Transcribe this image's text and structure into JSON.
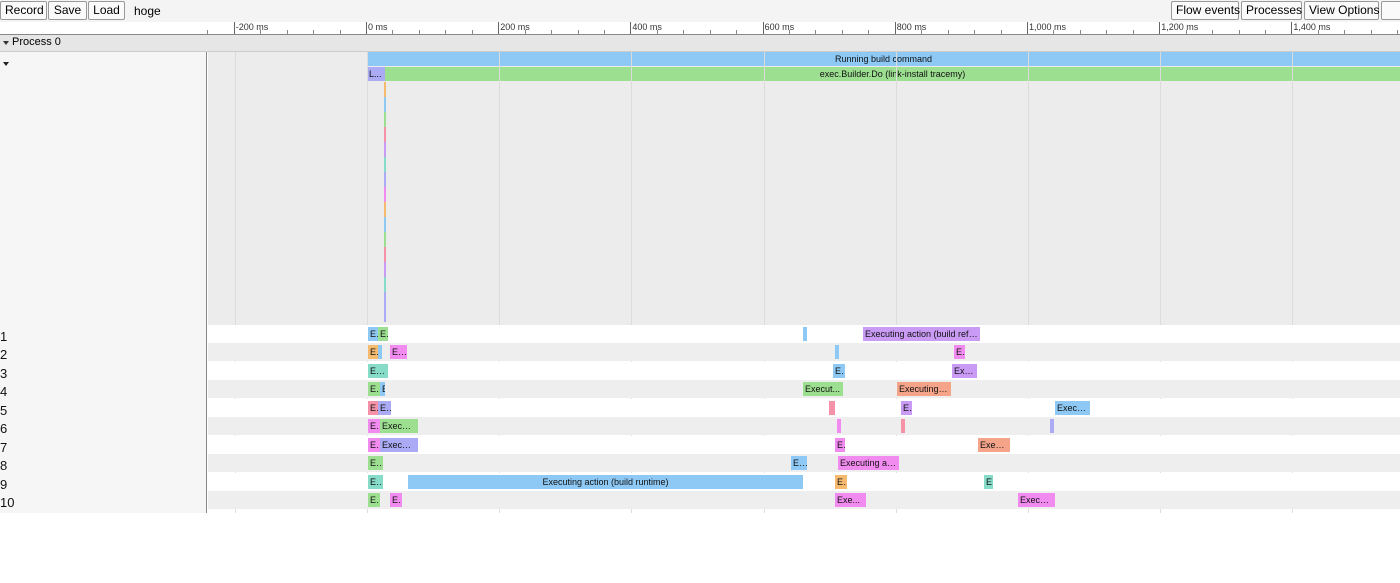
{
  "toolbar": {
    "record_label": "Record",
    "save_label": "Save",
    "load_label": "Load",
    "trace_name": "hoge",
    "flow_events_label": "Flow events",
    "processes_label": "Processes",
    "view_options_label": "View Options"
  },
  "ruler": {
    "labels": [
      "-200 ms",
      "0 ms",
      "200 ms",
      "400 ms",
      "600 ms",
      "800 ms",
      "1,000 ms",
      "1,200 ms",
      "1,400 ms"
    ]
  },
  "process": {
    "name": "Process 0"
  },
  "main_slices": {
    "top": "Running build command",
    "second_prefix": "L...",
    "second": "exec.Builder.Do (link-install tracemy)"
  },
  "threads": [
    {
      "label": "1",
      "slices": [
        {
          "start": 30,
          "dur": 10,
          "color": "#8ec9f5",
          "text": "Ex"
        },
        {
          "start": 40,
          "dur": 10,
          "color": "#9ddf90",
          "text": "Ex"
        },
        {
          "start": 465,
          "dur": 4,
          "color": "#8ec9f5",
          "text": ""
        },
        {
          "start": 525,
          "dur": 117,
          "color": "#c99bf5",
          "text": "Executing action (build reflect)"
        }
      ]
    },
    {
      "label": "2",
      "slices": [
        {
          "start": 30,
          "dur": 10,
          "color": "#f5ba6e",
          "text": "Ex"
        },
        {
          "start": 40,
          "dur": 4,
          "color": "#8ec9f5",
          "text": ""
        },
        {
          "start": 52,
          "dur": 17,
          "color": "#f28bf0",
          "text": "E..."
        },
        {
          "start": 497,
          "dur": 4,
          "color": "#8ec9f5",
          "text": ""
        },
        {
          "start": 616,
          "dur": 11,
          "color": "#f28bf0",
          "text": "Ex"
        }
      ]
    },
    {
      "label": "3",
      "slices": [
        {
          "start": 30,
          "dur": 20,
          "color": "#86dcc8",
          "text": "Exe..."
        },
        {
          "start": 495,
          "dur": 12,
          "color": "#8ec9f5",
          "text": "Exe"
        },
        {
          "start": 614,
          "dur": 25,
          "color": "#c99bf5",
          "text": "Exe..."
        }
      ]
    },
    {
      "label": "4",
      "slices": [
        {
          "start": 30,
          "dur": 12,
          "color": "#9ddf90",
          "text": "Exe"
        },
        {
          "start": 42,
          "dur": 5,
          "color": "#8ec9f5",
          "text": "E"
        },
        {
          "start": 465,
          "dur": 40,
          "color": "#9ddf90",
          "text": "Execut..."
        },
        {
          "start": 559,
          "dur": 54,
          "color": "#f5a48a",
          "text": "Executing ac..."
        }
      ]
    },
    {
      "label": "5",
      "slices": [
        {
          "start": 30,
          "dur": 10,
          "color": "#f592a8",
          "text": "Ex"
        },
        {
          "start": 40,
          "dur": 13,
          "color": "#aaaaf5",
          "text": "E..."
        },
        {
          "start": 491,
          "dur": 6,
          "color": "#f592a8",
          "text": ""
        },
        {
          "start": 563,
          "dur": 11,
          "color": "#c99bf5",
          "text": "Ex"
        },
        {
          "start": 717,
          "dur": 35,
          "color": "#8ec9f5",
          "text": "Execut..."
        }
      ]
    },
    {
      "label": "6",
      "slices": [
        {
          "start": 30,
          "dur": 12,
          "color": "#f28bf0",
          "text": "Exe"
        },
        {
          "start": 42,
          "dur": 38,
          "color": "#9ddf90",
          "text": "Execut..."
        },
        {
          "start": 499,
          "dur": 4,
          "color": "#f28bf0",
          "text": ""
        },
        {
          "start": 563,
          "dur": 4,
          "color": "#f592a8",
          "text": ""
        },
        {
          "start": 712,
          "dur": 4,
          "color": "#aaaaf5",
          "text": ""
        }
      ]
    },
    {
      "label": "7",
      "slices": [
        {
          "start": 30,
          "dur": 12,
          "color": "#f28bf0",
          "text": "Exe"
        },
        {
          "start": 42,
          "dur": 38,
          "color": "#aaaaf5",
          "text": "Executin..."
        },
        {
          "start": 497,
          "dur": 10,
          "color": "#f28bf0",
          "text": "Ex"
        },
        {
          "start": 640,
          "dur": 32,
          "color": "#f5a48a",
          "text": "Execu..."
        }
      ]
    },
    {
      "label": "8",
      "slices": [
        {
          "start": 30,
          "dur": 15,
          "color": "#9ddf90",
          "text": "E..."
        },
        {
          "start": 453,
          "dur": 16,
          "color": "#8ec9f5",
          "text": "E..."
        },
        {
          "start": 500,
          "dur": 61,
          "color": "#f28bf0",
          "text": "Executing actio..."
        }
      ]
    },
    {
      "label": "9",
      "slices": [
        {
          "start": 30,
          "dur": 15,
          "color": "#86dcc8",
          "text": "Exe"
        },
        {
          "start": 70,
          "dur": 395,
          "color": "#8ec9f5",
          "text": "Executing action (build runtime)"
        },
        {
          "start": 497,
          "dur": 12,
          "color": "#f5ba6e",
          "text": "Exe"
        },
        {
          "start": 646,
          "dur": 9,
          "color": "#86dcc8",
          "text": "Ex"
        }
      ]
    },
    {
      "label": "10",
      "slices": [
        {
          "start": 30,
          "dur": 12,
          "color": "#9ddf90",
          "text": "Exe"
        },
        {
          "start": 52,
          "dur": 12,
          "color": "#f28bf0",
          "text": "Exe"
        },
        {
          "start": 497,
          "dur": 31,
          "color": "#f28bf0",
          "text": "Exe..."
        },
        {
          "start": 680,
          "dur": 37,
          "color": "#f28bf0",
          "text": "Executin..."
        }
      ]
    }
  ]
}
